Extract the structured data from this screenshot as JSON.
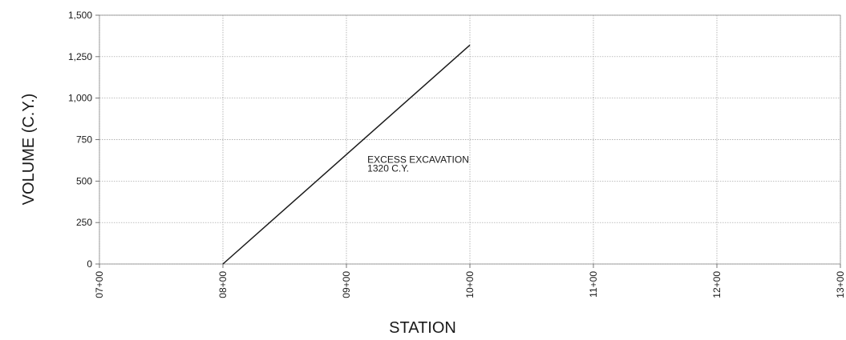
{
  "chart_data": {
    "type": "line",
    "title": "",
    "xlabel": "STATION",
    "ylabel": "VOLUME (C.Y.)",
    "x_tick_labels": [
      "07+00",
      "08+00",
      "09+00",
      "10+00",
      "11+00",
      "12+00",
      "13+00"
    ],
    "y_tick_labels": [
      "0",
      "250",
      "500",
      "750",
      "1,000",
      "1,250",
      "1,500"
    ],
    "xlim": [
      700,
      1300
    ],
    "ylim": [
      0,
      1500
    ],
    "x_tick_values": [
      700,
      800,
      900,
      1000,
      1100,
      1200,
      1300
    ],
    "y_tick_values": [
      0,
      250,
      500,
      750,
      1000,
      1250,
      1500
    ],
    "grid": true,
    "series": [
      {
        "x": [
          800,
          1000
        ],
        "y": [
          0,
          1320
        ]
      }
    ],
    "annotation": {
      "lines": [
        "EXCESS EXCAVATION",
        "1320 C.Y."
      ],
      "x": 917,
      "y": 610
    },
    "colors": {
      "line": "#1a1a1a",
      "grid": "#9a9a9a"
    }
  }
}
